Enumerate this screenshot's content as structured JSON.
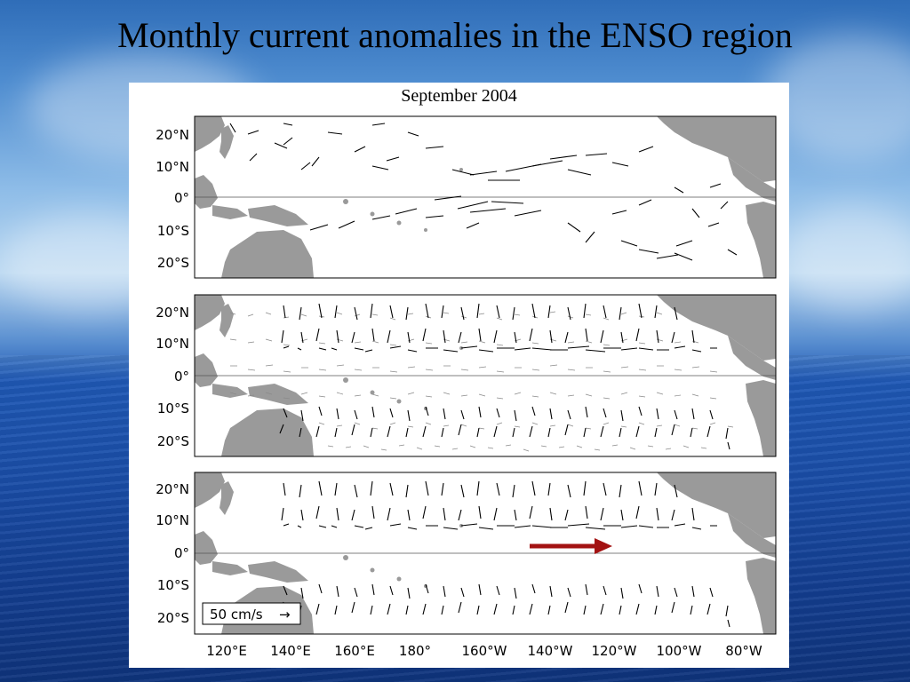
{
  "slide": {
    "title": "Monthly current anomalies in the ENSO region"
  },
  "figure": {
    "title": "September 2004",
    "latitude_labels": [
      "20°N",
      "10°N",
      "0°",
      "10°S",
      "20°S"
    ],
    "longitude_labels": [
      "120°E",
      "140°E",
      "160°E",
      "180°",
      "160°W",
      "140°W",
      "120°W",
      "100°W",
      "80°W"
    ],
    "panels": [
      {
        "name": "panel-top",
        "content": "drifter current anomaly vectors"
      },
      {
        "name": "panel-middle",
        "content": "gridded current anomaly vectors"
      },
      {
        "name": "panel-bottom",
        "content": "current anomaly vectors with highlight arrow"
      }
    ],
    "legend": {
      "label": "50 cm/s",
      "arrow": "→"
    },
    "highlight_arrow_color": "#a31212",
    "land_color": "#9a9a9a"
  }
}
